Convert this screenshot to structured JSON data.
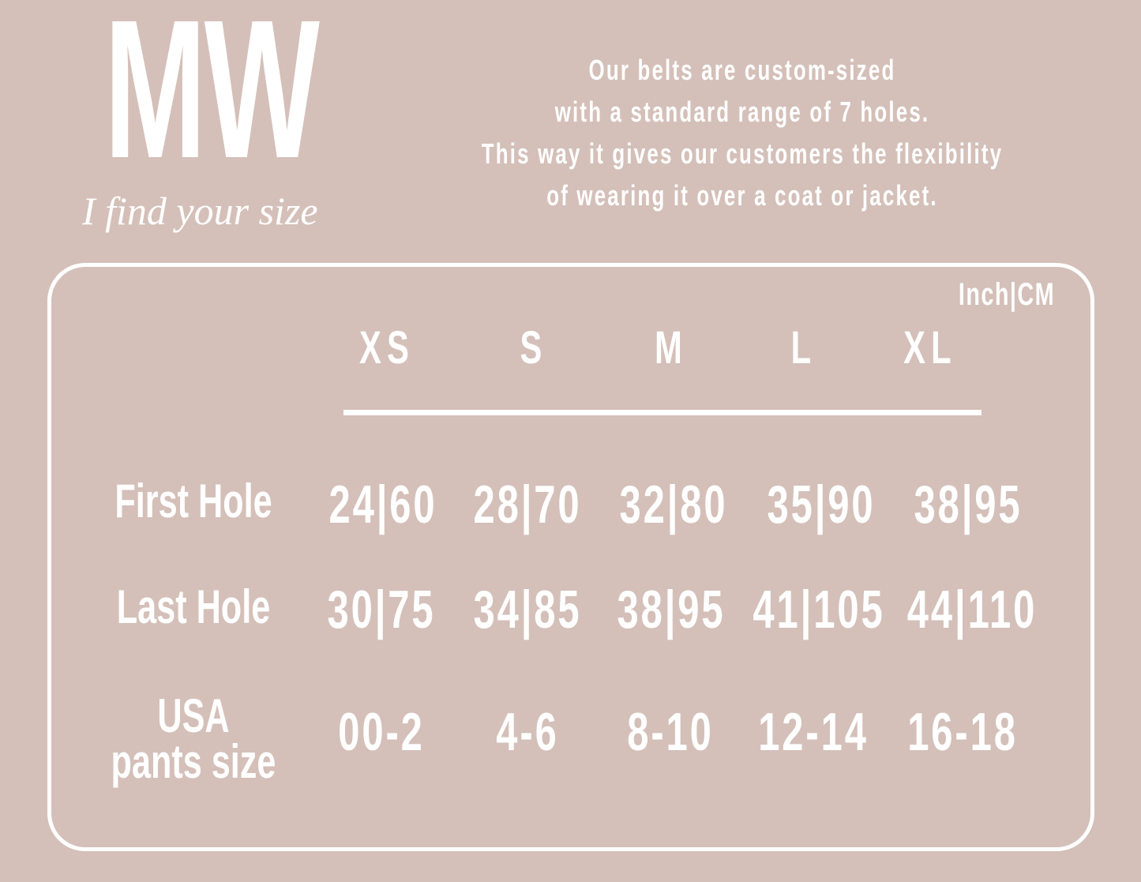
{
  "brand": {
    "logo": "MW",
    "tagline": "I find your size"
  },
  "intro": [
    "Our belts are custom-sized",
    "with a standard range of 7 holes.",
    "This way it gives our customers the flexibility",
    "of wearing it over a coat or jacket."
  ],
  "unit_label": "Inch|CM",
  "sizes": [
    "XS",
    "S",
    "M",
    "L",
    "XL"
  ],
  "rows": [
    {
      "label": "First Hole",
      "values": [
        "24|60",
        "28|70",
        "32|80",
        "35|90",
        "38|95"
      ]
    },
    {
      "label": "Last Hole",
      "values": [
        "30|75",
        "34|85",
        "38|95",
        "41|105",
        "44|110"
      ]
    },
    {
      "label": "USA pants size",
      "values": [
        "00-2",
        "4-6",
        "8-10",
        "12-14",
        "16-18"
      ]
    }
  ],
  "colors": {
    "background": "#d4c0b9",
    "foreground": "#ffffff"
  }
}
